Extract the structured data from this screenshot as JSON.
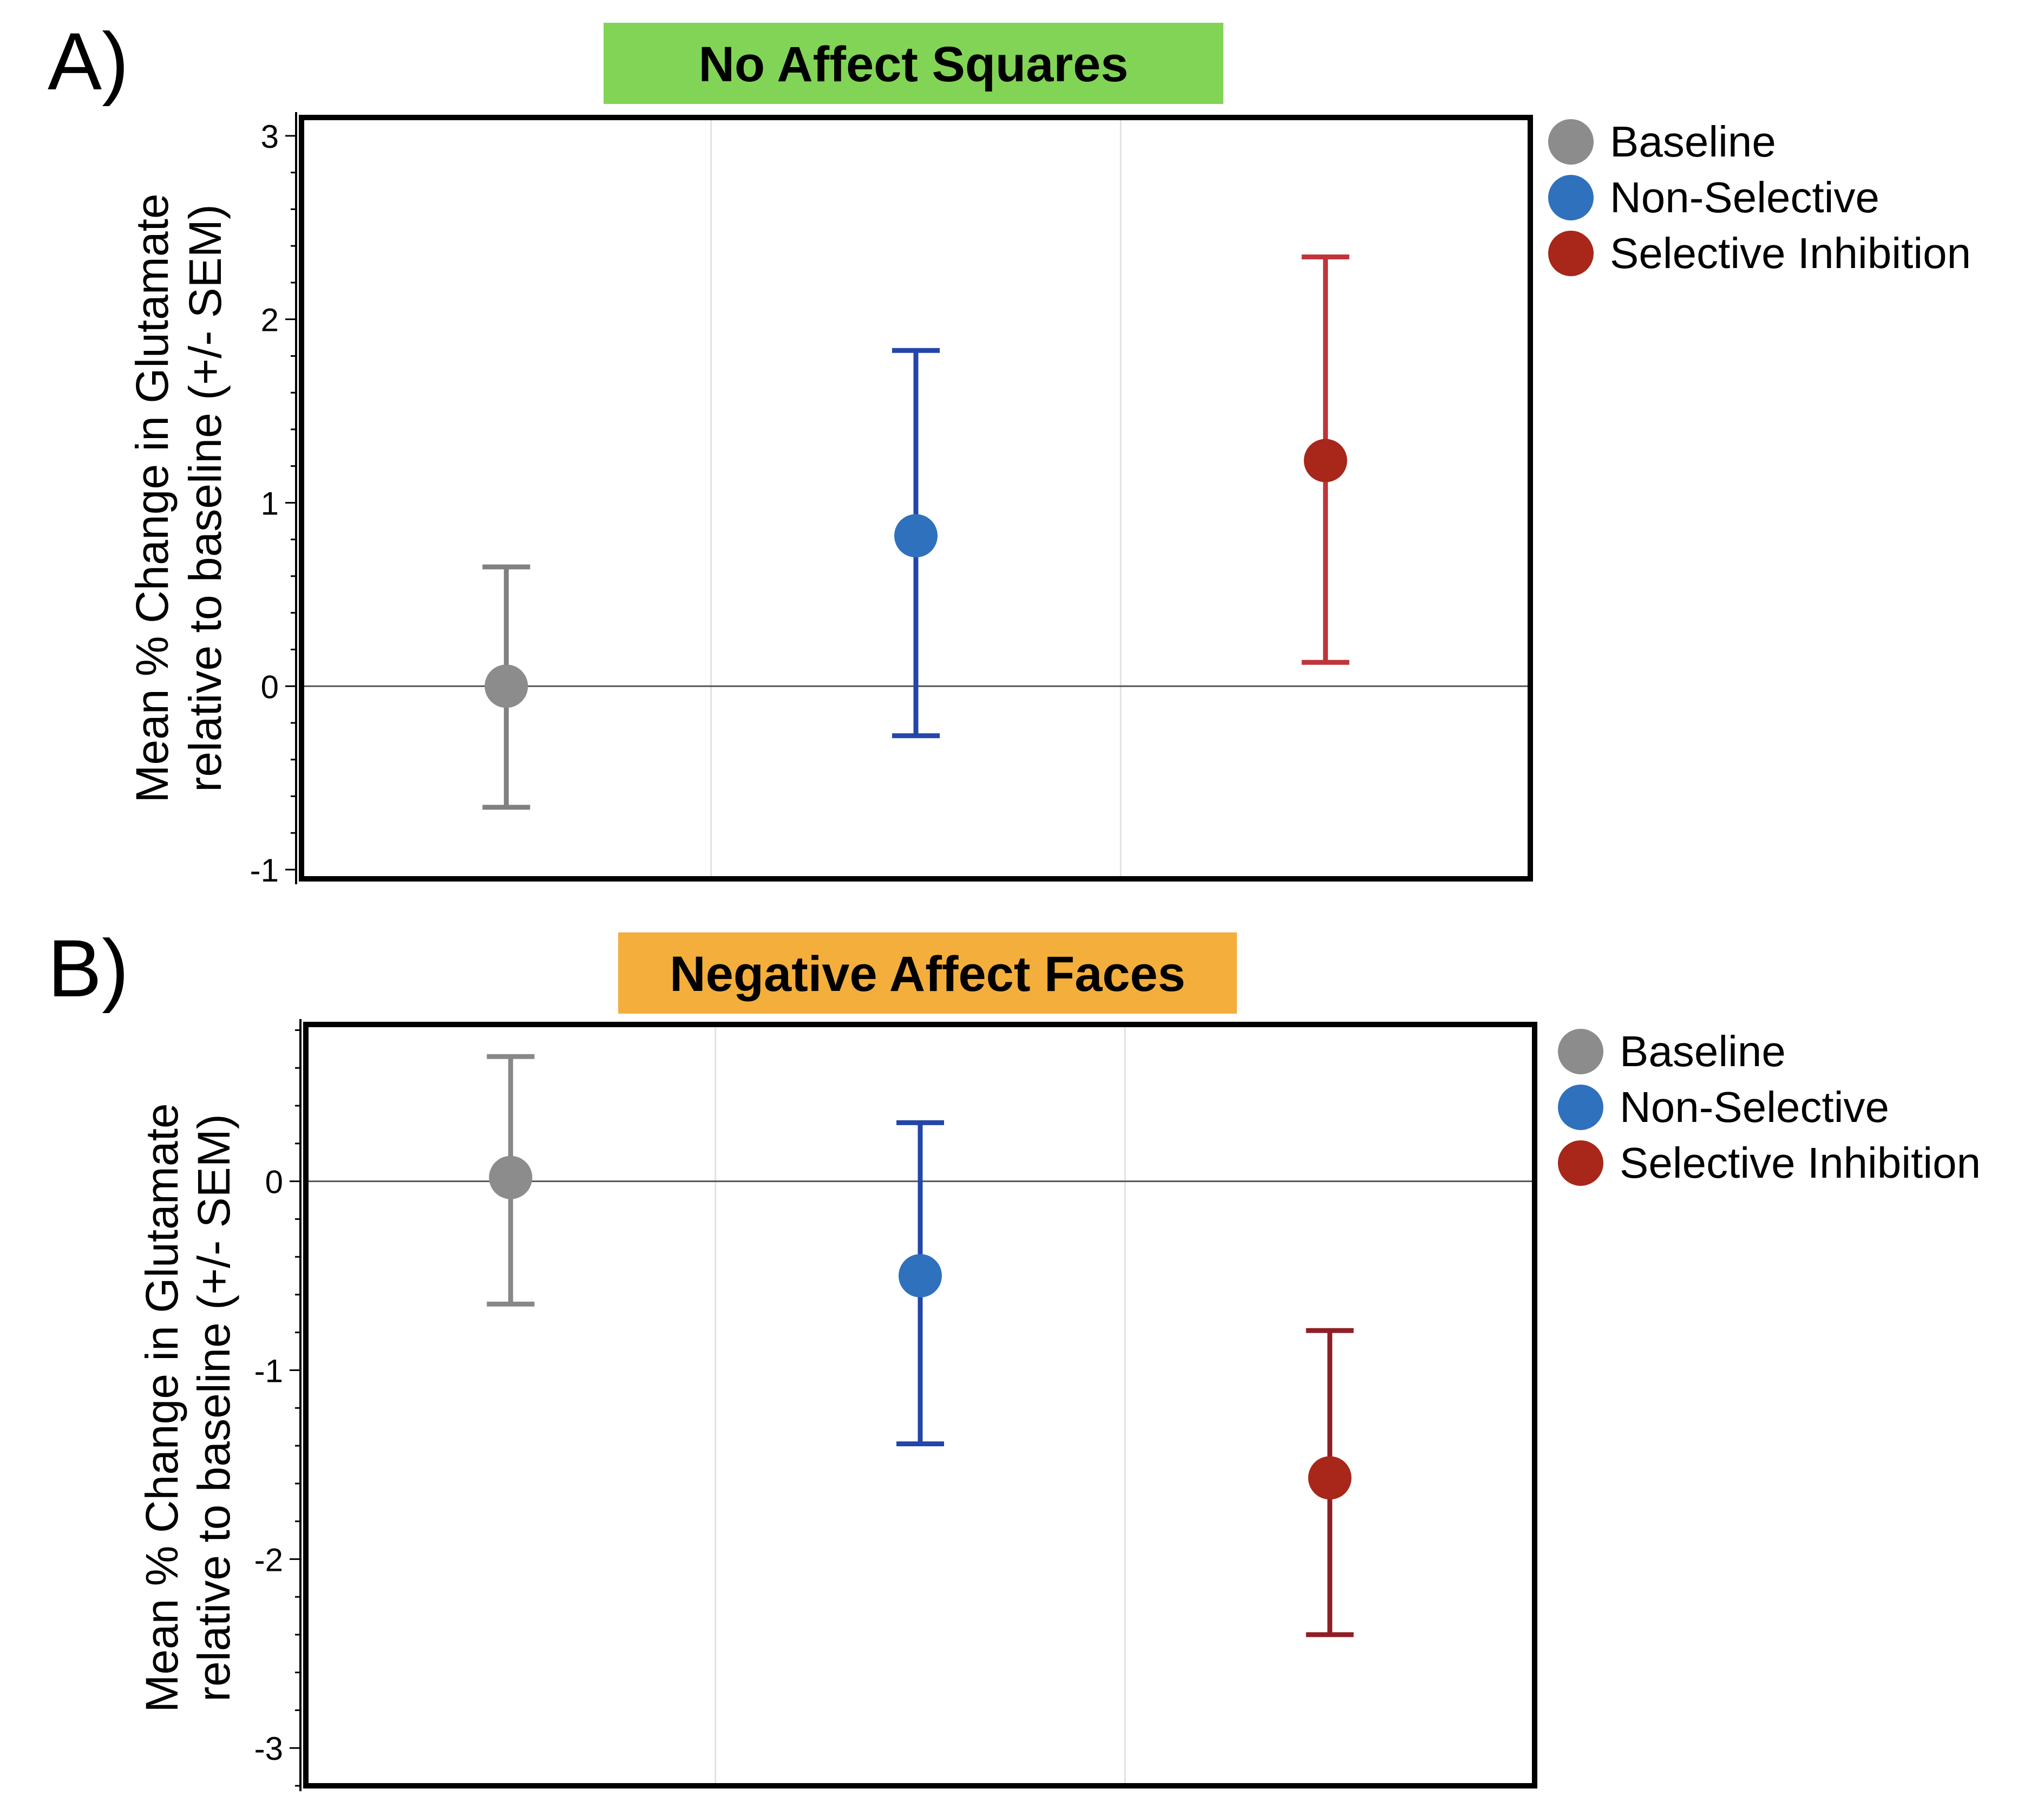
{
  "chart_data": [
    {
      "type": "scatter",
      "panel_label": "A)",
      "title": "No Affect Squares",
      "title_bg": "#82d456",
      "xlabel": "",
      "ylabel_lines": [
        "Mean % Change in Glutamate",
        "relative to baseline (+/- SEM)"
      ],
      "ylim": [
        -1.05,
        3.1
      ],
      "yticks": [
        3,
        2,
        1,
        0,
        -1
      ],
      "ytick_labels": [
        "3",
        "2",
        "1",
        "0",
        "-1"
      ],
      "reference_line": 0,
      "grid": "vertical",
      "legend": "right",
      "series": [
        {
          "name": "Baseline",
          "mean": 0.0,
          "upper": 0.65,
          "lower": -0.66,
          "point_color": "#8c8c8c",
          "bar_color": "#808080"
        },
        {
          "name": "Non-Selective",
          "mean": 0.82,
          "upper": 1.83,
          "lower": -0.27,
          "point_color": "#2f71bd",
          "bar_color": "#2346a8"
        },
        {
          "name": "Selective Inhibition",
          "mean": 1.23,
          "upper": 2.34,
          "lower": 0.13,
          "point_color": "#a8261a",
          "bar_color": "#c0353a"
        }
      ]
    },
    {
      "type": "scatter",
      "panel_label": "B)",
      "title": "Negative Affect Faces",
      "title_bg": "#f3ae3c",
      "xlabel": "",
      "ylabel_lines": [
        "Mean % Change in Glutamate",
        "relative to baseline (+/- SEM)"
      ],
      "ylim": [
        -3.2,
        0.83
      ],
      "yticks": [
        0,
        -1,
        -2,
        -3
      ],
      "ytick_labels": [
        "0",
        "-1",
        "-2",
        "-3"
      ],
      "reference_line": 0,
      "grid": "vertical",
      "legend": "right",
      "series": [
        {
          "name": "Baseline",
          "mean": 0.02,
          "upper": 0.66,
          "lower": -0.65,
          "point_color": "#8c8c8c",
          "bar_color": "#888888"
        },
        {
          "name": "Non-Selective",
          "mean": -0.5,
          "upper": 0.31,
          "lower": -1.39,
          "point_color": "#2f71bd",
          "bar_color": "#2346a8"
        },
        {
          "name": "Selective Inhibition",
          "mean": -1.57,
          "upper": -0.79,
          "lower": -2.4,
          "point_color": "#a8261a",
          "bar_color": "#8f1f25"
        }
      ]
    }
  ]
}
